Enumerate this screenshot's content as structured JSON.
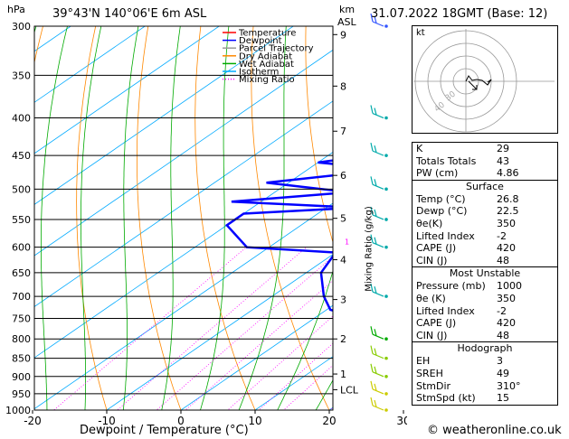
{
  "header": {
    "left_unit": "hPa",
    "location": "39°43'N 140°06'E 6m ASL",
    "right_unit_km": "km",
    "right_unit_asl": "ASL",
    "datetime": "31.07.2022 18GMT (Base: 12)"
  },
  "footer": {
    "xlabel": "Dewpoint / Temperature (°C)",
    "copyright": "© weatheronline.co.uk"
  },
  "mixing_axis_label": "Mixing Ratio (g/kg)",
  "colors": {
    "temperature": "#ff0000",
    "dewpoint": "#0000ff",
    "parcel": "#999999",
    "dry_adiabat": "#ff8800",
    "wet_adiabat": "#00aa00",
    "isotherm": "#00aaff",
    "mixing_ratio": "#ff00ff"
  },
  "legend": [
    "Temperature",
    "Dewpoint",
    "Parcel Trajectory",
    "Dry Adiabat",
    "Wet Adiabat",
    "Isotherm",
    "Mixing Ratio"
  ],
  "chart_data": {
    "type": "skew-t",
    "pressure_levels": [
      300,
      350,
      400,
      450,
      500,
      550,
      600,
      650,
      700,
      750,
      800,
      850,
      900,
      950,
      1000
    ],
    "x_ticks": [
      -30,
      -20,
      -10,
      0,
      10,
      20,
      30,
      40
    ],
    "xlim": [
      -35,
      40
    ],
    "ylim": [
      1000,
      300
    ],
    "height_km": [
      {
        "km": "9",
        "p": 308
      },
      {
        "km": "8",
        "p": 362
      },
      {
        "km": "7",
        "p": 417
      },
      {
        "km": "6",
        "p": 479
      },
      {
        "km": "5",
        "p": 548
      },
      {
        "km": "4",
        "p": 624
      },
      {
        "km": "3",
        "p": 707
      },
      {
        "km": "2",
        "p": 800
      },
      {
        "km": "1",
        "p": 893
      },
      {
        "km": "LCL",
        "p": 938
      }
    ],
    "mixing_ratio_labels": [
      {
        "w": "1",
        "t": -9.5
      },
      {
        "w": "2",
        "t": 0.5
      },
      {
        "w": "3",
        "t": 5.5
      },
      {
        "w": "4",
        "t": 9.5
      },
      {
        "w": "6",
        "t": 15
      },
      {
        "w": "8",
        "t": 19.5
      },
      {
        "w": "10",
        "t": 22.5
      },
      {
        "w": "15",
        "t": 28.5
      },
      {
        "w": "20",
        "t": 32.5
      },
      {
        "w": "25",
        "t": 35.5
      }
    ],
    "temperature": [
      {
        "p": 1000,
        "t": 26.8
      },
      {
        "p": 950,
        "t": 23
      },
      {
        "p": 900,
        "t": 20
      },
      {
        "p": 850,
        "t": 17
      },
      {
        "p": 800,
        "t": 14
      },
      {
        "p": 750,
        "t": 11.5
      },
      {
        "p": 700,
        "t": 8
      },
      {
        "p": 650,
        "t": 3.5
      },
      {
        "p": 600,
        "t": -1
      },
      {
        "p": 550,
        "t": -5
      },
      {
        "p": 500,
        "t": -10.5
      },
      {
        "p": 450,
        "t": -16
      },
      {
        "p": 400,
        "t": -22
      },
      {
        "p": 350,
        "t": -30
      },
      {
        "p": 300,
        "t": -39
      }
    ],
    "dewpoint": [
      {
        "p": 1000,
        "t": 22.5
      },
      {
        "p": 960,
        "t": 21
      },
      {
        "p": 950,
        "t": 22
      },
      {
        "p": 900,
        "t": 19
      },
      {
        "p": 850,
        "t": 15
      },
      {
        "p": 800,
        "t": 11
      },
      {
        "p": 760,
        "t": 9
      },
      {
        "p": 730,
        "t": 0.5
      },
      {
        "p": 700,
        "t": -3
      },
      {
        "p": 650,
        "t": -8
      },
      {
        "p": 610,
        "t": -10
      },
      {
        "p": 600,
        "t": -23
      },
      {
        "p": 560,
        "t": -30
      },
      {
        "p": 540,
        "t": -30
      },
      {
        "p": 530,
        "t": -16
      },
      {
        "p": 520,
        "t": -34
      },
      {
        "p": 505,
        "t": -20
      },
      {
        "p": 490,
        "t": -33
      },
      {
        "p": 470,
        "t": -19
      },
      {
        "p": 460,
        "t": -30
      },
      {
        "p": 440,
        "t": -19
      },
      {
        "p": 425,
        "t": -26
      },
      {
        "p": 420,
        "t": -18
      },
      {
        "p": 400,
        "t": -20
      },
      {
        "p": 370,
        "t": -28
      },
      {
        "p": 345,
        "t": -33
      },
      {
        "p": 335,
        "t": -43
      },
      {
        "p": 325,
        "t": -38
      },
      {
        "p": 318,
        "t": -50
      },
      {
        "p": 305,
        "t": -41
      },
      {
        "p": 300,
        "t": -44
      }
    ],
    "parcel": [
      {
        "p": 1000,
        "t": 26.8
      },
      {
        "p": 938,
        "t": 21.5
      },
      {
        "p": 900,
        "t": 19.8
      },
      {
        "p": 850,
        "t": 17.5
      },
      {
        "p": 800,
        "t": 15
      },
      {
        "p": 750,
        "t": 12.5
      },
      {
        "p": 700,
        "t": 9.5
      },
      {
        "p": 650,
        "t": 6.5
      },
      {
        "p": 600,
        "t": 3
      },
      {
        "p": 550,
        "t": -1
      },
      {
        "p": 500,
        "t": -5.5
      },
      {
        "p": 450,
        "t": -11
      },
      {
        "p": 400,
        "t": -17.5
      },
      {
        "p": 350,
        "t": -25.5
      },
      {
        "p": 300,
        "t": -35
      }
    ],
    "wind_barbs": [
      {
        "p": 300,
        "color": "#3355ff"
      },
      {
        "p": 400,
        "color": "#00aaaa"
      },
      {
        "p": 450,
        "color": "#00aaaa"
      },
      {
        "p": 500,
        "color": "#00aaaa"
      },
      {
        "p": 550,
        "color": "#00aaaa"
      },
      {
        "p": 600,
        "color": "#00aaaa"
      },
      {
        "p": 700,
        "color": "#00aaaa"
      },
      {
        "p": 800,
        "color": "#00aa00"
      },
      {
        "p": 850,
        "color": "#88cc00"
      },
      {
        "p": 900,
        "color": "#88cc00"
      },
      {
        "p": 950,
        "color": "#cccc00"
      },
      {
        "p": 1000,
        "color": "#cccc00"
      }
    ]
  },
  "hodograph": {
    "label": "kt",
    "ring_labels": [
      "40",
      "30"
    ]
  },
  "indices": [
    {
      "key": "K",
      "value": "29"
    },
    {
      "key": "Totals Totals",
      "value": "43"
    },
    {
      "key": "PW (cm)",
      "value": "4.86"
    }
  ],
  "surface": {
    "title": "Surface",
    "rows": [
      {
        "key": "Temp (°C)",
        "value": "26.8"
      },
      {
        "key": "Dewp (°C)",
        "value": "22.5"
      },
      {
        "key": "θe(K)",
        "value": "350"
      },
      {
        "key": "Lifted Index",
        "value": "-2"
      },
      {
        "key": "CAPE (J)",
        "value": "420"
      },
      {
        "key": "CIN (J)",
        "value": "48"
      }
    ]
  },
  "most_unstable": {
    "title": "Most Unstable",
    "rows": [
      {
        "key": "Pressure (mb)",
        "value": "1000"
      },
      {
        "key": "θe (K)",
        "value": "350"
      },
      {
        "key": "Lifted Index",
        "value": "-2"
      },
      {
        "key": "CAPE (J)",
        "value": "420"
      },
      {
        "key": "CIN (J)",
        "value": "48"
      }
    ]
  },
  "hodograph_table": {
    "title": "Hodograph",
    "rows": [
      {
        "key": "EH",
        "value": "3"
      },
      {
        "key": "SREH",
        "value": "49"
      },
      {
        "key": "StmDir",
        "value": "310°"
      },
      {
        "key": "StmSpd (kt)",
        "value": "15"
      }
    ]
  }
}
